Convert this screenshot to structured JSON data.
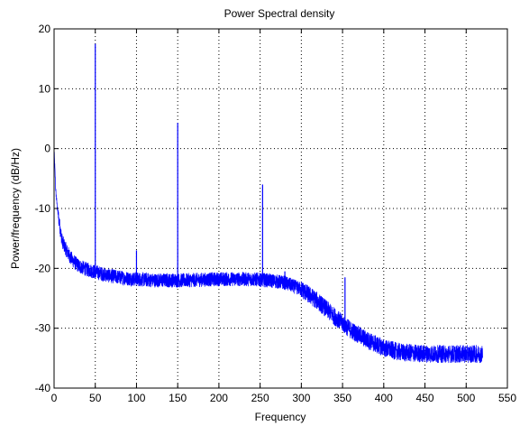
{
  "chart_data": {
    "type": "line",
    "title": "Power Spectral density",
    "xlabel": "Frequency",
    "ylabel": "Power/frequency (dB/Hz)",
    "xlim": [
      0,
      550
    ],
    "ylim": [
      -40,
      20
    ],
    "xticks": [
      0,
      50,
      100,
      150,
      200,
      250,
      300,
      350,
      400,
      450,
      500,
      550
    ],
    "yticks": [
      -40,
      -30,
      -20,
      -10,
      0,
      10,
      20
    ],
    "grid": true,
    "line_color": "#0000ff",
    "series": [
      {
        "x": [
          0,
          2,
          4,
          6,
          8,
          10,
          15,
          20,
          25,
          30,
          40,
          50,
          60,
          70,
          80,
          90,
          100,
          120,
          140,
          160,
          180,
          200,
          220,
          240,
          260,
          280,
          300,
          320,
          340,
          360,
          380,
          400,
          420,
          440,
          460,
          480,
          500,
          520
        ],
        "y": [
          0,
          -7,
          -10,
          -12,
          -14,
          -15.5,
          -17,
          -18.2,
          -19,
          -19.6,
          -20.2,
          -20.6,
          -21,
          -21.3,
          -21.5,
          -21.7,
          -21.8,
          -22,
          -22,
          -22,
          -21.9,
          -21.8,
          -21.8,
          -21.8,
          -22,
          -22.4,
          -23.5,
          -25.5,
          -28,
          -30.3,
          -32,
          -33.3,
          -34,
          -34.2,
          -34.3,
          -34.3,
          -34.3,
          -34.3
        ]
      }
    ],
    "peaks": [
      {
        "x": 50,
        "y": 17.5
      },
      {
        "x": 100,
        "y": -17
      },
      {
        "x": 150,
        "y": 4.3
      },
      {
        "x": 253,
        "y": -6
      },
      {
        "x": 280,
        "y": -20.5
      },
      {
        "x": 353,
        "y": -21.5
      }
    ]
  }
}
